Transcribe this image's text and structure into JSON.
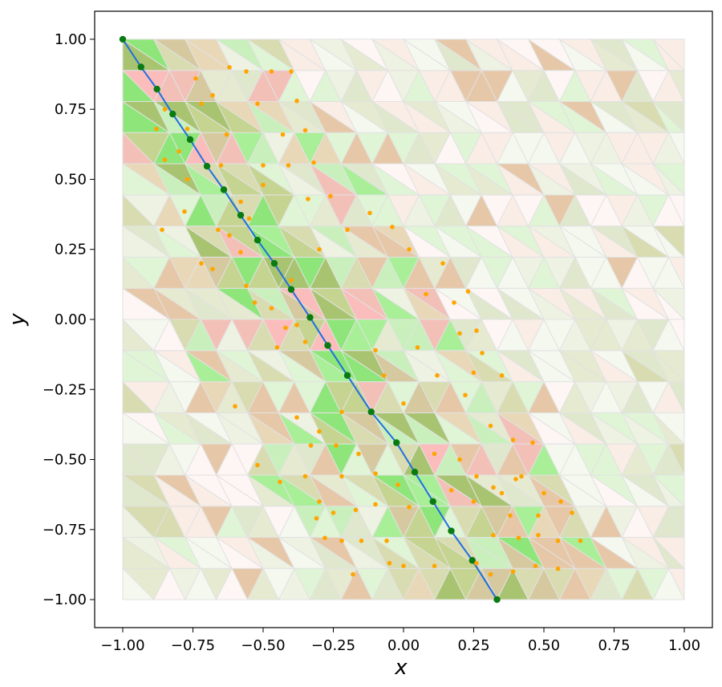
{
  "colors": {
    "path_line": "#1f6fe0",
    "path_point": "#0a7a12",
    "sample_point": "#ffa500",
    "mesh_edge": "#e2e2e2",
    "frame": "#000000",
    "tri_palette": [
      "#fdf6f4",
      "#f9ede6",
      "#eef2e2",
      "#e6ead0",
      "#d8dcb0",
      "#c5d490",
      "#a8c470",
      "#dff5d6",
      "#c9f0bc",
      "#a8ef98",
      "#8ee67a",
      "#e6c8a8",
      "#f3c0b8",
      "#fbbcbc",
      "#e8d8b8",
      "#f4f8ef",
      "#dfe7cd",
      "#d6c9a0",
      "#e3a78a",
      "#5daa1e"
    ]
  },
  "chart_data": {
    "type": "scatter",
    "title": "",
    "xlabel": "x",
    "ylabel": "y",
    "xlim": [
      -1.1,
      1.1
    ],
    "ylim": [
      -1.1,
      1.1
    ],
    "xticks": [
      "−1.00",
      "−0.75",
      "−0.50",
      "−0.25",
      "0.00",
      "0.25",
      "0.50",
      "0.75",
      "1.00"
    ],
    "yticks": [
      "1.00",
      "0.75",
      "0.50",
      "0.25",
      "0.00",
      "−0.25",
      "−0.50",
      "−0.75",
      "−1.00"
    ],
    "xtick_values": [
      -1.0,
      -0.75,
      -0.5,
      -0.25,
      0.0,
      0.25,
      0.5,
      0.75,
      1.0
    ],
    "ytick_values": [
      1.0,
      0.75,
      0.5,
      0.25,
      0.0,
      -0.25,
      -0.5,
      -0.75,
      -1.0
    ],
    "domain": [
      [
        -1.0,
        1.0
      ],
      [
        -1.0,
        1.0
      ]
    ],
    "grid": false,
    "background": "triangular mesh colored by value (shades of pink, tan, and green)",
    "series": [
      {
        "kind": "line_with_points",
        "points": [
          [
            -1.0,
            1.0
          ],
          [
            -0.935,
            0.901
          ],
          [
            -0.878,
            0.822
          ],
          [
            -0.822,
            0.733
          ],
          [
            -0.76,
            0.642
          ],
          [
            -0.7,
            0.547
          ],
          [
            -0.64,
            0.463
          ],
          [
            -0.58,
            0.372
          ],
          [
            -0.52,
            0.283
          ],
          [
            -0.46,
            0.2
          ],
          [
            -0.4,
            0.107
          ],
          [
            -0.333,
            0.007
          ],
          [
            -0.27,
            -0.093
          ],
          [
            -0.2,
            -0.2
          ],
          [
            -0.115,
            -0.33
          ],
          [
            -0.025,
            -0.44
          ],
          [
            0.04,
            -0.545
          ],
          [
            0.105,
            -0.65
          ],
          [
            0.17,
            -0.755
          ],
          [
            0.245,
            -0.86
          ],
          [
            0.333,
            -1.0
          ]
        ]
      },
      {
        "kind": "scatter",
        "points": [
          [
            -0.62,
            0.9
          ],
          [
            -0.56,
            0.885
          ],
          [
            -0.47,
            0.885
          ],
          [
            -0.4,
            0.885
          ],
          [
            -0.52,
            0.77
          ],
          [
            -0.38,
            0.78
          ],
          [
            -0.43,
            0.66
          ],
          [
            -0.35,
            0.675
          ],
          [
            -0.5,
            0.55
          ],
          [
            -0.41,
            0.55
          ],
          [
            -0.32,
            0.56
          ],
          [
            -0.26,
            0.44
          ],
          [
            -0.34,
            0.43
          ],
          [
            -0.5,
            0.48
          ],
          [
            -0.55,
            0.36
          ],
          [
            -0.62,
            0.3
          ],
          [
            -0.58,
            0.42
          ],
          [
            -0.68,
            0.8
          ],
          [
            -0.63,
            0.66
          ],
          [
            -0.65,
            0.55
          ],
          [
            -0.74,
            0.86
          ],
          [
            -0.72,
            0.77
          ],
          [
            -0.77,
            0.68
          ],
          [
            -0.85,
            0.75
          ],
          [
            -0.88,
            0.68
          ],
          [
            -0.8,
            0.6
          ],
          [
            -0.85,
            0.57
          ],
          [
            -0.77,
            0.5
          ],
          [
            -0.78,
            0.385
          ],
          [
            -0.86,
            0.32
          ],
          [
            -0.66,
            0.32
          ],
          [
            -0.72,
            0.2
          ],
          [
            -0.68,
            0.18
          ],
          [
            -0.58,
            0.24
          ],
          [
            -0.56,
            0.12
          ],
          [
            -0.53,
            0.06
          ],
          [
            -0.47,
            0.04
          ],
          [
            -0.45,
            -0.1
          ],
          [
            -0.38,
            -0.02
          ],
          [
            -0.42,
            -0.03
          ],
          [
            -0.35,
            -0.08
          ],
          [
            -0.4,
            0.14
          ],
          [
            -0.3,
            0.25
          ],
          [
            -0.2,
            0.32
          ],
          [
            -0.12,
            0.38
          ],
          [
            -0.04,
            0.33
          ],
          [
            0.02,
            0.25
          ],
          [
            0.14,
            0.2
          ],
          [
            0.08,
            0.09
          ],
          [
            0.18,
            0.06
          ],
          [
            0.23,
            0.1
          ],
          [
            0.2,
            -0.05
          ],
          [
            0.26,
            -0.04
          ],
          [
            0.28,
            -0.12
          ],
          [
            0.25,
            -0.19
          ],
          [
            0.35,
            -0.2
          ],
          [
            0.22,
            -0.27
          ],
          [
            0.31,
            -0.38
          ],
          [
            0.39,
            -0.43
          ],
          [
            0.46,
            -0.44
          ],
          [
            -0.1,
            -0.11
          ],
          [
            0.05,
            -0.1
          ],
          [
            0.12,
            -0.2
          ],
          [
            -0.07,
            -0.2
          ],
          [
            0.0,
            -0.3
          ],
          [
            -0.22,
            -0.33
          ],
          [
            -0.3,
            -0.4
          ],
          [
            -0.33,
            -0.45
          ],
          [
            -0.24,
            -0.45
          ],
          [
            -0.16,
            -0.48
          ],
          [
            0.11,
            -0.48
          ],
          [
            0.2,
            -0.5
          ],
          [
            0.26,
            -0.56
          ],
          [
            0.4,
            -0.57
          ],
          [
            0.32,
            -0.6
          ],
          [
            -0.35,
            -0.56
          ],
          [
            -0.3,
            -0.65
          ],
          [
            -0.22,
            -0.56
          ],
          [
            -0.1,
            -0.55
          ],
          [
            -0.02,
            -0.59
          ],
          [
            0.17,
            -0.61
          ],
          [
            0.25,
            -0.65
          ],
          [
            0.35,
            -0.62
          ],
          [
            0.42,
            -0.56
          ],
          [
            0.5,
            -0.62
          ],
          [
            0.56,
            -0.65
          ],
          [
            0.6,
            -0.69
          ],
          [
            0.48,
            -0.7
          ],
          [
            0.38,
            -0.7
          ],
          [
            0.32,
            -0.77
          ],
          [
            0.41,
            -0.78
          ],
          [
            0.48,
            -0.77
          ],
          [
            0.55,
            -0.79
          ],
          [
            0.63,
            -0.79
          ],
          [
            0.55,
            -0.89
          ],
          [
            0.47,
            -0.88
          ],
          [
            0.39,
            -0.9
          ],
          [
            0.31,
            -0.91
          ],
          [
            0.26,
            -0.87
          ],
          [
            0.11,
            -0.88
          ],
          [
            0.0,
            -0.88
          ],
          [
            -0.06,
            -0.79
          ],
          [
            -0.15,
            -0.79
          ],
          [
            -0.22,
            -0.79
          ],
          [
            -0.18,
            -0.91
          ],
          [
            -0.05,
            -0.87
          ],
          [
            -0.28,
            -0.78
          ],
          [
            -0.31,
            -0.71
          ],
          [
            -0.17,
            -0.68
          ],
          [
            -0.1,
            -0.66
          ],
          [
            0.02,
            -0.67
          ],
          [
            -0.25,
            -0.69
          ],
          [
            -0.6,
            -0.31
          ],
          [
            -0.52,
            -0.52
          ],
          [
            -0.44,
            -0.58
          ],
          [
            -0.38,
            -0.35
          ]
        ]
      }
    ]
  }
}
